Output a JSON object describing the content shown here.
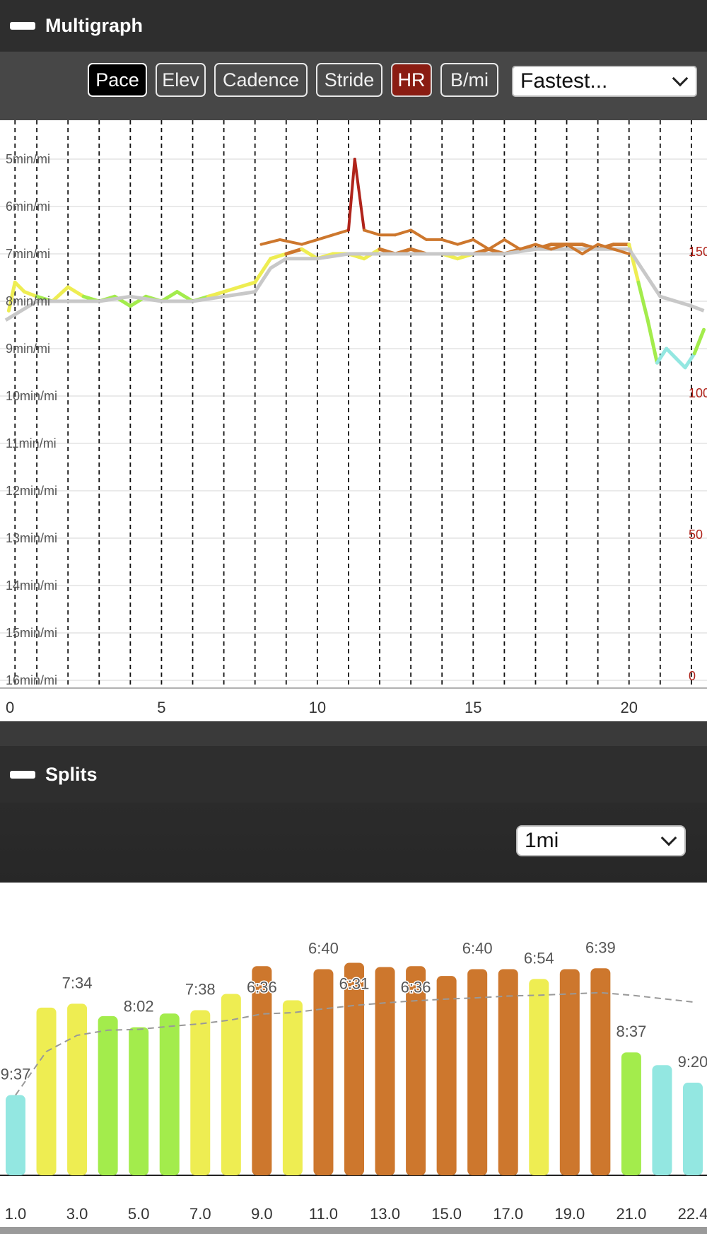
{
  "multigraph": {
    "title": "Multigraph",
    "buttons": [
      {
        "label": "Pace",
        "state": "active",
        "name": "pace-button"
      },
      {
        "label": "Elev",
        "state": "off",
        "name": "elev-button"
      },
      {
        "label": "Cadence",
        "state": "off",
        "name": "cadence-button"
      },
      {
        "label": "Stride",
        "state": "off",
        "name": "stride-button"
      },
      {
        "label": "HR",
        "state": "active",
        "name": "hr-button"
      },
      {
        "label": "B/mi",
        "state": "off",
        "name": "bpmi-button"
      }
    ],
    "dropdown_value": "Fastest..."
  },
  "splits": {
    "title": "Splits",
    "dropdown_value": "1mi"
  },
  "colors": {
    "cyan": "#93e7e1",
    "green": "#a3ec4c",
    "yellow": "#eeed52",
    "orange": "#cd772d",
    "gray": "#c8c8c8",
    "hr_red": "#b0241b",
    "active_button": "#000000",
    "hr_button": "#8a1c12"
  },
  "chart_data": [
    {
      "type": "line",
      "title": "",
      "xlabel": "",
      "ylabel": "",
      "xlim": [
        0,
        22.4
      ],
      "ylim": [
        5,
        16
      ],
      "y_reversed": true,
      "y_ticks": [
        "5min/mi",
        "6min/mi",
        "7min/mi",
        "8min/mi",
        "9min/mi",
        "10min/mi",
        "11min/mi",
        "12min/mi",
        "13min/mi",
        "14min/mi",
        "15min/mi",
        "16min/mi"
      ],
      "x_ticks": [
        "0",
        "5",
        "10",
        "15",
        "20"
      ],
      "right_axis_ticks": [
        "150",
        "100",
        "50",
        "0"
      ],
      "lap_markers": [
        0.3,
        1.0,
        2.0,
        3.0,
        4.0,
        5.0,
        6.0,
        7.0,
        8.0,
        9.0,
        10.0,
        11.0,
        12.0,
        13.0,
        14.0,
        15.0,
        16.0,
        17.0,
        18.0,
        19.0,
        20.0,
        21.0,
        22.0
      ],
      "grid": true,
      "series": [
        {
          "kind": "pace_colored",
          "x": [
            0.1,
            0.3,
            0.6,
            1.0,
            1.5,
            2.0,
            2.5,
            3.0,
            3.5,
            4.0,
            4.5,
            5.0,
            5.5,
            6.0,
            6.5,
            7.0,
            7.5,
            8.0,
            8.5,
            9.0,
            9.5,
            10.0,
            10.5,
            11.0,
            11.5,
            12.0,
            12.5,
            13.0,
            13.5,
            14.0,
            14.5,
            15.0,
            15.5,
            16.0,
            16.5,
            17.0,
            17.5,
            18.0,
            18.5,
            19.0,
            19.5,
            20.0,
            20.3,
            20.6,
            20.9,
            21.2,
            21.5,
            21.8,
            22.1,
            22.4
          ],
          "y": [
            8.2,
            7.6,
            7.8,
            7.9,
            8.0,
            7.7,
            7.9,
            8.0,
            7.9,
            8.1,
            7.9,
            8.0,
            7.8,
            8.0,
            7.9,
            7.8,
            7.7,
            7.6,
            7.1,
            7.0,
            6.9,
            7.1,
            7.0,
            7.0,
            7.1,
            6.9,
            7.0,
            6.9,
            7.0,
            7.0,
            7.1,
            7.0,
            6.9,
            7.0,
            6.9,
            6.9,
            6.8,
            6.8,
            6.8,
            6.9,
            6.8,
            6.8,
            7.6,
            8.4,
            9.3,
            9.0,
            9.2,
            9.4,
            9.1,
            8.6
          ]
        },
        {
          "kind": "smoothed",
          "x": [
            0.0,
            1.0,
            2.0,
            3.0,
            4.0,
            5.0,
            6.0,
            7.0,
            8.0,
            8.5,
            9.0,
            10.0,
            11.0,
            12.0,
            13.0,
            14.0,
            15.0,
            16.0,
            17.0,
            18.0,
            19.0,
            20.0,
            20.5,
            21.0,
            21.5,
            22.0,
            22.4
          ],
          "y": [
            8.4,
            8.0,
            8.0,
            8.0,
            7.9,
            8.0,
            8.0,
            7.9,
            7.8,
            7.3,
            7.1,
            7.1,
            7.0,
            7.0,
            7.0,
            7.0,
            7.0,
            7.0,
            6.9,
            6.9,
            6.9,
            6.9,
            7.4,
            7.9,
            8.0,
            8.1,
            8.2
          ]
        },
        {
          "kind": "heart_rate",
          "x": [
            8.2,
            8.8,
            9.5,
            10.0,
            10.5,
            11.0,
            11.2,
            11.5,
            12.0,
            12.5,
            13.0,
            13.5,
            14.0,
            14.5,
            15.0,
            15.5,
            16.0,
            16.5,
            17.0,
            17.5,
            18.0,
            18.5,
            19.0,
            19.5,
            20.0
          ],
          "y": [
            6.8,
            6.7,
            6.8,
            6.7,
            6.6,
            6.5,
            5.0,
            6.5,
            6.6,
            6.6,
            6.5,
            6.7,
            6.7,
            6.8,
            6.7,
            6.9,
            6.7,
            6.9,
            6.8,
            6.9,
            6.8,
            7.0,
            6.8,
            6.9,
            7.0
          ]
        }
      ]
    },
    {
      "type": "bar",
      "title": "",
      "xlabel": "",
      "ylabel": "",
      "categories": [
        "1.0",
        "2.0",
        "3.0",
        "4.0",
        "5.0",
        "6.0",
        "7.0",
        "8.0",
        "9.0",
        "10.0",
        "11.0",
        "12.0",
        "13.0",
        "14.0",
        "15.0",
        "16.0",
        "17.0",
        "18.0",
        "19.0",
        "20.0",
        "21.0",
        "22.0",
        "22.4"
      ],
      "x_tick_labels": [
        "1.0",
        "3.0",
        "5.0",
        "7.0",
        "9.0",
        "11.0",
        "13.0",
        "15.0",
        "17.0",
        "19.0",
        "21.0",
        "22.4"
      ],
      "values": [
        9.62,
        7.57,
        7.48,
        7.77,
        8.03,
        7.71,
        7.63,
        7.25,
        6.6,
        7.4,
        6.67,
        6.52,
        6.62,
        6.6,
        6.83,
        6.67,
        6.67,
        6.9,
        6.67,
        6.65,
        8.62,
        8.92,
        9.33
      ],
      "value_labels": [
        "9:37",
        "",
        "7:34",
        "",
        "8:02",
        "",
        "7:38",
        "",
        "6:36",
        "",
        "6:40",
        "6:31",
        "",
        "6:36",
        "",
        "6:40",
        "",
        "6:54",
        "",
        "6:39",
        "8:37",
        "",
        "9:20"
      ],
      "colors": [
        "cyan",
        "yellow",
        "yellow",
        "green",
        "green",
        "green",
        "yellow",
        "yellow",
        "orange",
        "yellow",
        "orange",
        "orange",
        "orange",
        "orange",
        "orange",
        "orange",
        "orange",
        "yellow",
        "orange",
        "orange",
        "green",
        "cyan",
        "cyan"
      ],
      "trend": [
        9.62,
        8.6,
        8.22,
        8.1,
        8.08,
        8.01,
        7.95,
        7.86,
        7.72,
        7.69,
        7.6,
        7.52,
        7.46,
        7.41,
        7.37,
        7.34,
        7.3,
        7.28,
        7.25,
        7.22,
        7.28,
        7.36,
        7.44
      ],
      "ylim": [
        11.5,
        5.8
      ]
    }
  ]
}
